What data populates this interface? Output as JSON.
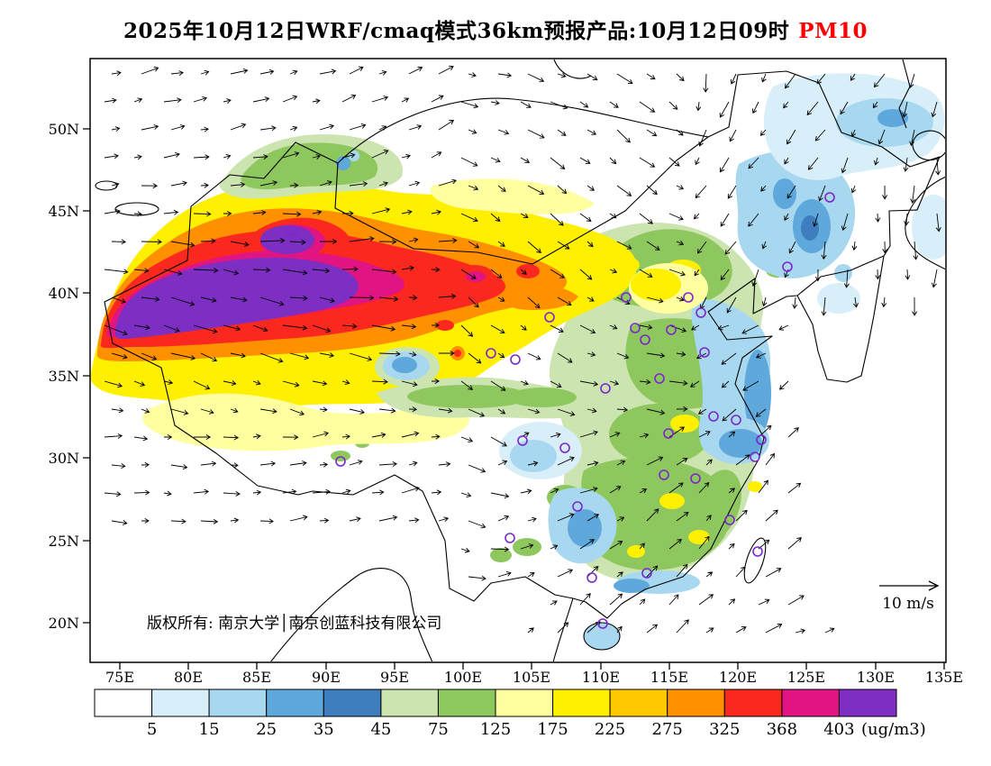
{
  "title": {
    "prefix": "2025年10月12日WRF/cmaq模式36km预报产品:10月12日09时",
    "pollutant": "PM10",
    "pollutant_color": "#FF0000"
  },
  "map": {
    "copyright": "版权所有: 南京大学│南京创蓝科技有限公司",
    "wind_legend_label": "10 m/s"
  },
  "axes": {
    "y_ticks": [
      "50N",
      "45N",
      "40N",
      "35N",
      "30N",
      "25N",
      "20N"
    ],
    "x_ticks": [
      "75E",
      "80E",
      "85E",
      "90E",
      "95E",
      "100E",
      "105E",
      "110E",
      "115E",
      "120E",
      "125E",
      "130E",
      "135E"
    ]
  },
  "chart_data": {
    "type": "heatmap",
    "title": "2025年10月12日WRF/cmaq模式36km预报产品:10月12日09时 PM10",
    "variable": "PM10",
    "unit_label": "(ug/m3)",
    "extent": {
      "lon_min": "75E",
      "lon_max": "135E",
      "lat_min": "20N",
      "lat_max": "50N"
    },
    "legend_position": "bottom",
    "colorbar": {
      "levels": [
        5,
        15,
        25,
        35,
        45,
        75,
        125,
        175,
        225,
        275,
        325,
        368,
        403
      ],
      "colors": [
        "#FFFFFF",
        "#D8EEF9",
        "#A8D8F0",
        "#5FA8DC",
        "#3E7EBE",
        "#CBE4B0",
        "#8FC75F",
        "#FFFFA0",
        "#FFF000",
        "#FFC800",
        "#FF9000",
        "#FA281E",
        "#E11484",
        "#7D2FC3"
      ]
    },
    "wind_reference": {
      "label": "10 m/s",
      "speed_ms": 10
    },
    "marker_color": "#7D26CD",
    "vector_color": "#000000"
  }
}
